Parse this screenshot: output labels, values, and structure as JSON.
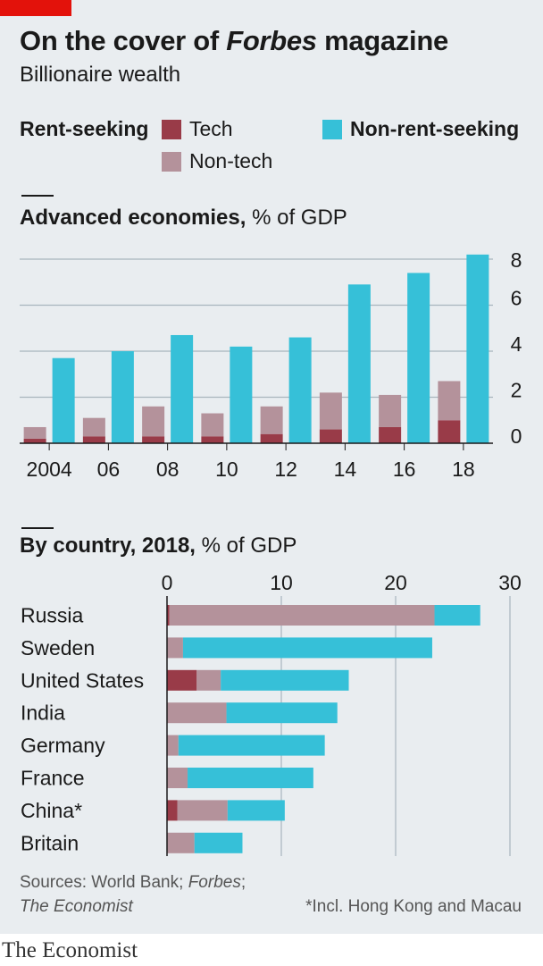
{
  "header": {
    "title_pre": "On the cover of ",
    "title_italic": "Forbes",
    "title_post": " magazine",
    "subtitle": "Billionaire wealth"
  },
  "legend": {
    "rent_seeking": "Rent-seeking",
    "tech": "Tech",
    "non_tech": "Non-tech",
    "non_rent_seeking": "Non-rent-seeking"
  },
  "colors": {
    "tech": "#993b48",
    "non_tech": "#b4929b",
    "non_rent": "#36c0d8",
    "grid": "#a9b5bd",
    "axis": "#1a1a1a",
    "panel": "#e9edf0",
    "brand_red": "#e3120b"
  },
  "sections": {
    "advanced": {
      "bold": "Advanced economies,",
      "rest": " % of GDP"
    },
    "country": {
      "bold": "By country, 2018,",
      "rest": " % of GDP"
    }
  },
  "chart_data": [
    {
      "type": "bar",
      "stacked": true,
      "orientation": "vertical",
      "title": "Advanced economies, % of GDP",
      "categories": [
        "2004",
        "06",
        "08",
        "10",
        "12",
        "14",
        "16",
        "18"
      ],
      "x_tick_labels": [
        "2004",
        "06",
        "08",
        "10",
        "12",
        "14",
        "16",
        "18"
      ],
      "ylim": [
        0,
        8
      ],
      "y_ticks": [
        0,
        2,
        4,
        6,
        8
      ],
      "y_tick_labels": [
        "0",
        "2",
        "4",
        "6",
        "8"
      ],
      "y_axis_side": "right",
      "grid": true,
      "series": [
        {
          "name": "Tech",
          "stack": "Rent-seeking",
          "values": [
            0.2,
            0.3,
            0.3,
            0.3,
            0.4,
            0.6,
            0.7,
            1.0
          ]
        },
        {
          "name": "Non-tech",
          "stack": "Rent-seeking",
          "values": [
            0.5,
            0.8,
            1.3,
            1.0,
            1.2,
            1.6,
            1.4,
            1.7
          ]
        },
        {
          "name": "Non-rent-seeking",
          "stack": "Non-rent-seeking",
          "values": [
            3.7,
            4.0,
            4.7,
            4.2,
            4.6,
            6.9,
            7.4,
            8.2
          ]
        }
      ]
    },
    {
      "type": "bar",
      "stacked": true,
      "orientation": "horizontal",
      "title": "By country, 2018, % of GDP",
      "categories": [
        "Russia",
        "Sweden",
        "United States",
        "India",
        "Germany",
        "France",
        "China*",
        "Britain"
      ],
      "xlim": [
        0,
        30
      ],
      "x_ticks": [
        0,
        10,
        20,
        30
      ],
      "x_tick_labels": [
        "0",
        "10",
        "20",
        "30"
      ],
      "x_axis_side": "top",
      "grid": true,
      "series": [
        {
          "name": "Tech",
          "values": [
            0.2,
            0.0,
            2.6,
            0.0,
            0.0,
            0.0,
            0.9,
            0.0
          ]
        },
        {
          "name": "Non-tech",
          "values": [
            23.2,
            1.4,
            2.1,
            5.2,
            1.0,
            1.8,
            4.4,
            2.4
          ]
        },
        {
          "name": "Non-rent-seeking",
          "values": [
            4.0,
            21.8,
            11.2,
            9.7,
            12.8,
            11.0,
            5.0,
            4.2
          ]
        }
      ]
    }
  ],
  "footer": {
    "sources_line1": "Sources: World Bank; ",
    "sources_forbes": "Forbes",
    "sources_semicolon": ";",
    "sources_line2": "The Economist",
    "footnote": "*Incl. Hong Kong and Macau",
    "brand": "The Economist"
  }
}
